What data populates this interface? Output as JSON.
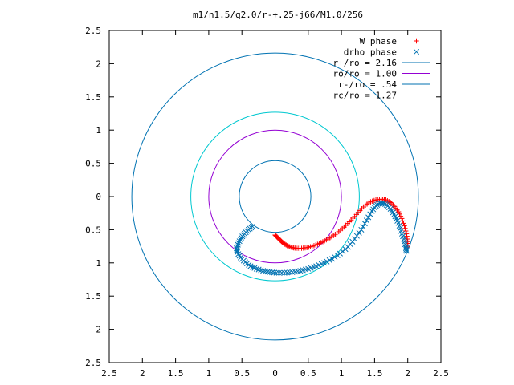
{
  "chart_data": {
    "type": "scatter",
    "title": "m1/n1.5/q2.0/r-+.25-j66/M1.0/256",
    "xlim": [
      -2.5,
      2.5
    ],
    "ylim": [
      -2.5,
      2.5
    ],
    "x_tick_values": [
      -2.5,
      -2,
      -1.5,
      -1,
      -0.5,
      0,
      0.5,
      1,
      1.5,
      2,
      2.5
    ],
    "x_tick_labels": [
      "2.5",
      "2",
      "1.5",
      "1",
      "0.5",
      "0",
      "0.5",
      "1",
      "1.5",
      "2",
      "2.5"
    ],
    "y_tick_values": [
      2.5,
      2,
      1.5,
      1,
      0.5,
      0,
      -0.5,
      -1,
      -1.5,
      -2,
      -2.5
    ],
    "y_tick_labels": [
      "2.5",
      "2",
      "1.5",
      "1",
      "0.5",
      "0",
      "0.5",
      "1",
      "1.5",
      "2",
      "2.5"
    ],
    "grid": false,
    "legend_position": "top-right",
    "circles": [
      {
        "name": "r+/ro = 2.16",
        "radius": 2.16,
        "color": "#0072b2"
      },
      {
        "name": "ro/ro = 1.00",
        "radius": 1.0,
        "color": "#9400d3"
      },
      {
        "name": "r-/ro = .54",
        "radius": 0.54,
        "color": "#0072b2"
      },
      {
        "name": "rc/ro = 1.27",
        "radius": 1.27,
        "color": "#00c8d0"
      }
    ],
    "series": [
      {
        "name": "W phase",
        "marker": "plus",
        "color": "#ff0000",
        "points": [
          [
            0.0,
            -0.58
          ],
          [
            0.03,
            -0.61
          ],
          [
            0.07,
            -0.65
          ],
          [
            0.11,
            -0.69
          ],
          [
            0.15,
            -0.72
          ],
          [
            0.2,
            -0.75
          ],
          [
            0.26,
            -0.77
          ],
          [
            0.32,
            -0.78
          ],
          [
            0.4,
            -0.78
          ],
          [
            0.48,
            -0.77
          ],
          [
            0.56,
            -0.75
          ],
          [
            0.64,
            -0.72
          ],
          [
            0.72,
            -0.68
          ],
          [
            0.8,
            -0.64
          ],
          [
            0.88,
            -0.59
          ],
          [
            0.96,
            -0.53
          ],
          [
            1.04,
            -0.46
          ],
          [
            1.12,
            -0.38
          ],
          [
            1.2,
            -0.3
          ],
          [
            1.28,
            -0.21
          ],
          [
            1.36,
            -0.13
          ],
          [
            1.44,
            -0.08
          ],
          [
            1.52,
            -0.05
          ],
          [
            1.6,
            -0.04
          ],
          [
            1.67,
            -0.05
          ],
          [
            1.74,
            -0.09
          ],
          [
            1.8,
            -0.15
          ],
          [
            1.86,
            -0.23
          ],
          [
            1.91,
            -0.33
          ],
          [
            1.95,
            -0.44
          ],
          [
            1.98,
            -0.56
          ],
          [
            2.0,
            -0.68
          ],
          [
            2.0,
            -0.76
          ]
        ]
      },
      {
        "name": "drho phase",
        "marker": "cross",
        "color": "#0072b2",
        "points": [
          [
            -0.34,
            -0.45
          ],
          [
            -0.4,
            -0.5
          ],
          [
            -0.46,
            -0.56
          ],
          [
            -0.51,
            -0.62
          ],
          [
            -0.55,
            -0.7
          ],
          [
            -0.58,
            -0.78
          ],
          [
            -0.57,
            -0.84
          ],
          [
            -0.52,
            -0.92
          ],
          [
            -0.45,
            -0.99
          ],
          [
            -0.37,
            -1.05
          ],
          [
            -0.28,
            -1.09
          ],
          [
            -0.18,
            -1.12
          ],
          [
            -0.08,
            -1.14
          ],
          [
            0.02,
            -1.15
          ],
          [
            0.14,
            -1.15
          ],
          [
            0.26,
            -1.14
          ],
          [
            0.38,
            -1.12
          ],
          [
            0.5,
            -1.09
          ],
          [
            0.62,
            -1.05
          ],
          [
            0.74,
            -1.0
          ],
          [
            0.86,
            -0.94
          ],
          [
            0.98,
            -0.86
          ],
          [
            1.1,
            -0.76
          ],
          [
            1.2,
            -0.64
          ],
          [
            1.3,
            -0.5
          ],
          [
            1.38,
            -0.36
          ],
          [
            1.46,
            -0.22
          ],
          [
            1.52,
            -0.14
          ],
          [
            1.58,
            -0.1
          ],
          [
            1.64,
            -0.1
          ],
          [
            1.7,
            -0.14
          ],
          [
            1.76,
            -0.21
          ],
          [
            1.81,
            -0.3
          ],
          [
            1.86,
            -0.4
          ],
          [
            1.9,
            -0.52
          ],
          [
            1.94,
            -0.64
          ],
          [
            1.97,
            -0.76
          ],
          [
            1.98,
            -0.82
          ]
        ]
      }
    ]
  }
}
